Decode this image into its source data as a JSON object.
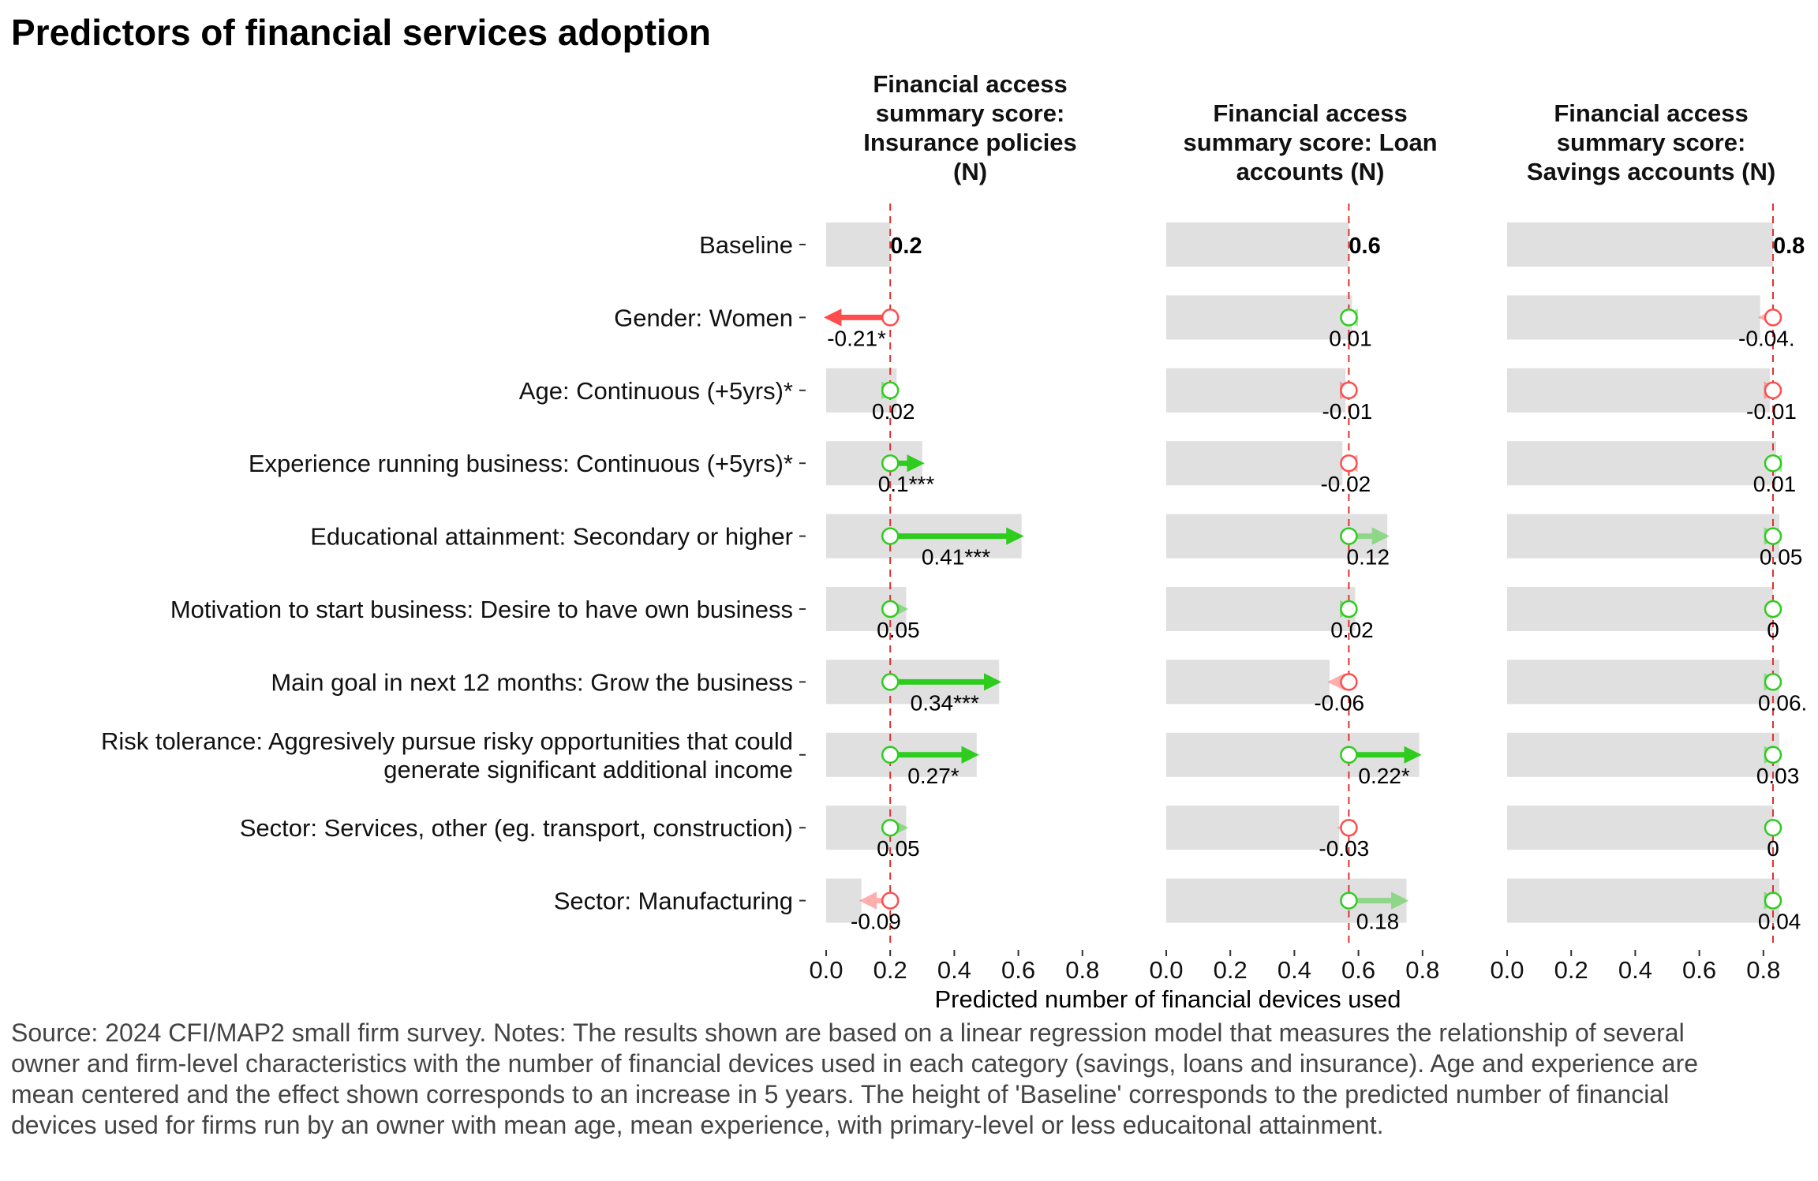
{
  "title": "Predictors of financial services adoption",
  "caption": "Source: 2024 CFI/MAP2 small firm survey. Notes: The results shown are based on a linear regression model that measures the relationship of several owner and firm-level characteristics with the number of financial devices used in each category (savings, loans and insurance). Age and experience are mean centered and the effect shown corresponds to an increase in 5 years. The height of 'Baseline' corresponds to the predicted number of financial devices used for firms run by an owner with mean age, mean experience, with primary-level or less educaitonal attainment.",
  "colors": {
    "positive": "#2ecc1e",
    "negative": "#ff4d4d",
    "bar": "#e0e0e0",
    "baseline_line": "#e03030"
  },
  "chart_data": {
    "type": "bar",
    "xlabel": "Predicted number of financial devices used",
    "xlim": [
      0,
      0.85
    ],
    "ticks": [
      0.0,
      0.2,
      0.4,
      0.6,
      0.8
    ],
    "tick_labels": [
      "0.0",
      "0.2",
      "0.4",
      "0.6",
      "0.8"
    ],
    "categories": [
      [
        "Baseline"
      ],
      [
        "Gender: Women"
      ],
      [
        "Age: Continuous (+5yrs)*"
      ],
      [
        "Experience running business: Continuous (+5yrs)*"
      ],
      [
        "Educational attainment: Secondary or higher"
      ],
      [
        "Motivation to start business: Desire to have own business"
      ],
      [
        "Main goal in next 12 months: Grow the business"
      ],
      [
        "Risk tolerance: Aggresively pursue risky opportunities that could",
        "generate significant additional income"
      ],
      [
        "Sector: Services, other (eg. transport, construction)"
      ],
      [
        "Sector: Manufacturing"
      ]
    ],
    "panels": [
      {
        "title": [
          "Financial access",
          "summary score:",
          "Insurance policies",
          "(N)"
        ],
        "baseline": 0.2,
        "baseline_label": "0.2",
        "effects": [
          -0.21,
          0.02,
          0.1,
          0.41,
          0.05,
          0.34,
          0.27,
          0.05,
          -0.09
        ],
        "labels": [
          "-0.21*",
          "0.02",
          "0.1***",
          "0.41***",
          "0.05",
          "0.34***",
          "0.27*",
          "0.05",
          "-0.09"
        ],
        "significant": [
          true,
          false,
          true,
          true,
          false,
          true,
          true,
          false,
          false
        ]
      },
      {
        "title": [
          "Financial access",
          "summary score: Loan",
          "accounts (N)"
        ],
        "baseline": 0.57,
        "baseline_label": "0.6",
        "effects": [
          0.01,
          -0.01,
          -0.02,
          0.12,
          0.02,
          -0.06,
          0.22,
          -0.03,
          0.18
        ],
        "labels": [
          "0.01",
          "-0.01",
          "-0.02",
          "0.12",
          "0.02",
          "-0.06",
          "0.22*",
          "-0.03",
          "0.18"
        ],
        "significant": [
          false,
          false,
          false,
          false,
          false,
          false,
          true,
          false,
          false
        ]
      },
      {
        "title": [
          "Financial access",
          "summary score:",
          "Savings accounts (N)"
        ],
        "baseline": 0.83,
        "baseline_label": "0.8",
        "effects": [
          -0.04,
          -0.01,
          0.01,
          0.05,
          0.0,
          0.06,
          0.03,
          0.0,
          0.04
        ],
        "labels": [
          "-0.04.",
          "-0.01",
          "0.01",
          "0.05",
          "0",
          "0.06.",
          "0.03",
          "0",
          "0.04"
        ],
        "significant": [
          false,
          false,
          false,
          false,
          false,
          false,
          false,
          false,
          false
        ]
      }
    ]
  }
}
